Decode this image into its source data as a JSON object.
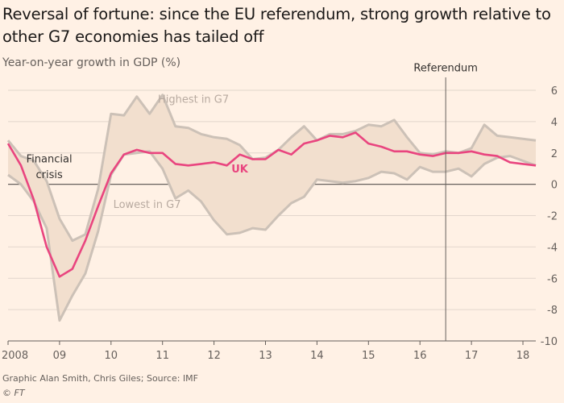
{
  "title": "Reversal of fortune: since the EU referendum, strong growth relative to other G7 economies has tailed off",
  "subtitle": "Year-on-year growth in GDP (%)",
  "source": "Graphic Alan Smith, Chris Giles; Source: IMF",
  "copyright": "© FT",
  "colors": {
    "background": "#fff1e5",
    "band": "#f2dfce",
    "band_lines": "#ccc1b7",
    "uk": "#e9457f",
    "grid": "#e2d6cc",
    "zero": "#66605c",
    "annotation": "#b8aaa0",
    "text": "#33302e"
  },
  "chart_data": {
    "type": "area",
    "title": "Reversal of fortune: since the EU referendum, strong growth relative to other G7 economies has tailed off",
    "ylabel": "Year-on-year growth in GDP (%)",
    "xlabel": "",
    "ylim": [
      -10,
      6
    ],
    "y_ticks": [
      6,
      4,
      2,
      0,
      -2,
      -4,
      -6,
      -8,
      -10
    ],
    "y_tick_labels": [
      "6",
      "4",
      "2",
      "0",
      "-2",
      "-4",
      "-6",
      "-8",
      "-10"
    ],
    "x_ticks": [
      2008,
      2009,
      2010,
      2011,
      2012,
      2013,
      2014,
      2015,
      2016,
      2017,
      2018
    ],
    "x_tick_labels": [
      "2008",
      "09",
      "10",
      "11",
      "12",
      "13",
      "14",
      "15",
      "16",
      "17",
      "18"
    ],
    "xlim": [
      2008,
      2018.25
    ],
    "grid": true,
    "x": [
      2008.0,
      2008.25,
      2008.5,
      2008.75,
      2009.0,
      2009.25,
      2009.5,
      2009.75,
      2010.0,
      2010.25,
      2010.5,
      2010.75,
      2011.0,
      2011.25,
      2011.5,
      2011.75,
      2012.0,
      2012.25,
      2012.5,
      2012.75,
      2013.0,
      2013.25,
      2013.5,
      2013.75,
      2014.0,
      2014.25,
      2014.5,
      2014.75,
      2015.0,
      2015.25,
      2015.5,
      2015.75,
      2016.0,
      2016.25,
      2016.5,
      2016.75,
      2017.0,
      2017.25,
      2017.5,
      2017.75,
      2018.0,
      2018.25
    ],
    "series": [
      {
        "name": "Highest in G7",
        "values": [
          2.8,
          1.8,
          1.5,
          0.2,
          -2.2,
          -3.6,
          -3.2,
          -0.3,
          4.5,
          4.4,
          5.6,
          4.5,
          5.7,
          3.7,
          3.6,
          3.2,
          3.0,
          2.9,
          2.5,
          1.6,
          1.7,
          2.2,
          3.0,
          3.7,
          2.8,
          3.2,
          3.2,
          3.4,
          3.8,
          3.7,
          4.1,
          3.0,
          2.0,
          1.9,
          2.1,
          2.0,
          2.3,
          3.8,
          3.1,
          3.0,
          2.9,
          2.8
        ]
      },
      {
        "name": "Lowest in G7",
        "values": [
          0.6,
          0.0,
          -1.1,
          -2.8,
          -8.7,
          -7.1,
          -5.7,
          -3.0,
          0.6,
          1.9,
          2.0,
          2.1,
          1.0,
          -0.9,
          -0.4,
          -1.1,
          -2.3,
          -3.2,
          -3.1,
          -2.8,
          -2.9,
          -2.0,
          -1.2,
          -0.8,
          0.3,
          0.2,
          0.1,
          0.2,
          0.4,
          0.8,
          0.7,
          0.3,
          1.1,
          0.8,
          0.8,
          1.0,
          0.5,
          1.3,
          1.7,
          1.8,
          1.5,
          1.2
        ]
      },
      {
        "name": "UK",
        "values": [
          2.6,
          1.2,
          -1.0,
          -4.0,
          -5.9,
          -5.4,
          -3.6,
          -1.4,
          0.7,
          1.9,
          2.2,
          2.0,
          2.0,
          1.3,
          1.2,
          1.3,
          1.4,
          1.2,
          1.9,
          1.6,
          1.6,
          2.2,
          1.9,
          2.6,
          2.8,
          3.1,
          3.0,
          3.3,
          2.6,
          2.4,
          2.1,
          2.1,
          1.9,
          1.8,
          2.0,
          2.0,
          2.1,
          1.9,
          1.8,
          1.4,
          1.3,
          1.2
        ]
      }
    ],
    "annotations": [
      {
        "text": "Highest in G7",
        "x": 2011.6,
        "y": 5.2
      },
      {
        "text": "Lowest in G7",
        "x": 2010.7,
        "y": -1.5
      },
      {
        "text": "UK",
        "x": 2012.5,
        "y": 0.75
      },
      {
        "text": "Financial",
        "x": 2008.8,
        "y": 1.4
      },
      {
        "text": "crisis",
        "x": 2008.8,
        "y": 0.4
      },
      {
        "text": "Referendum",
        "x": 2016.5,
        "y": 7.2
      }
    ],
    "reference_line": {
      "x": 2016.5,
      "label": "Referendum"
    }
  }
}
